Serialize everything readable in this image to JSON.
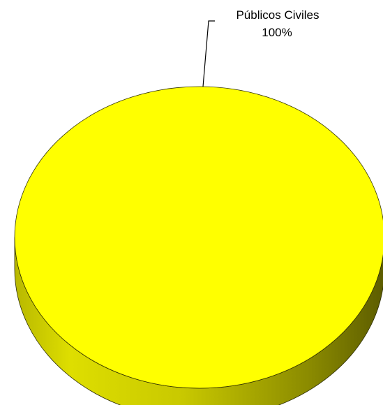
{
  "chart_data": {
    "type": "pie",
    "style": "3d",
    "title": "",
    "slices": [
      {
        "label": "Públicos Civiles",
        "value": 100,
        "percent_label": "100%",
        "color": "#ffff00"
      }
    ],
    "legend": "none"
  }
}
